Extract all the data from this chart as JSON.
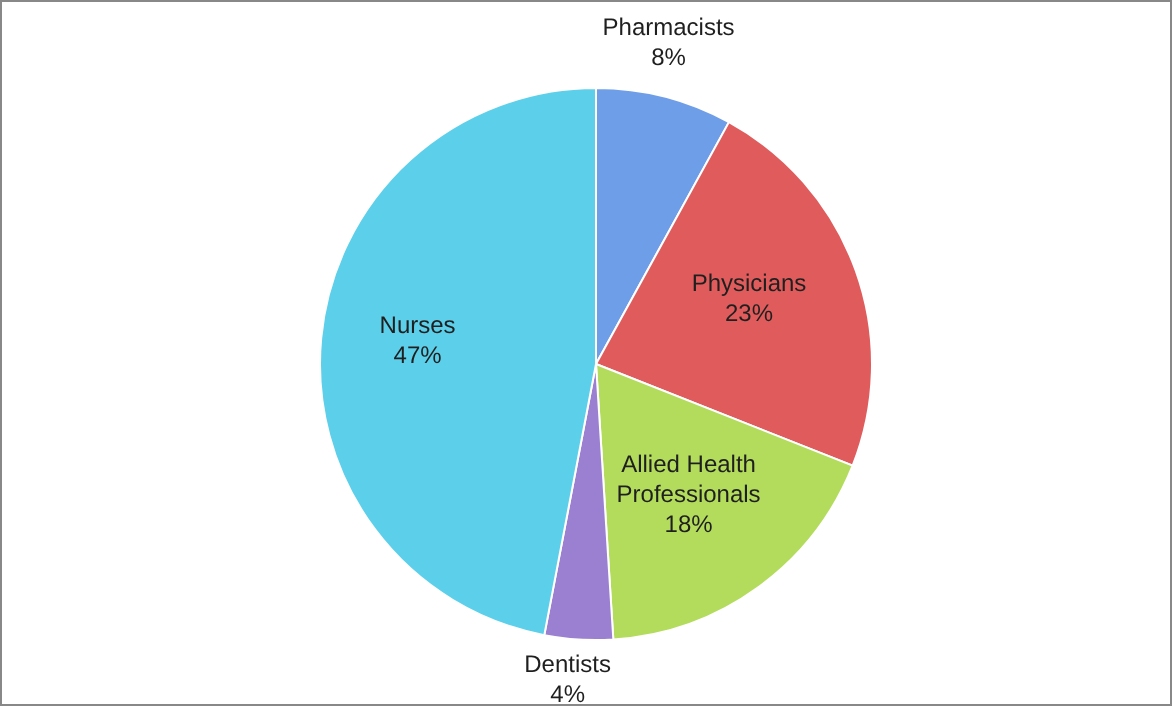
{
  "chart_data": {
    "type": "pie",
    "categories": [
      "Pharmacists",
      "Physicians",
      "Allied Health Professionals",
      "Dentists",
      "Nurses"
    ],
    "values": [
      8,
      23,
      18,
      4,
      47
    ],
    "value_labels": [
      "8%",
      "23%",
      "18%",
      "4%",
      "47%"
    ],
    "colors": [
      "#6f9ee8",
      "#e05c5c",
      "#b4dc5c",
      "#9b7fd0",
      "#5ccfea"
    ],
    "legend": false
  }
}
